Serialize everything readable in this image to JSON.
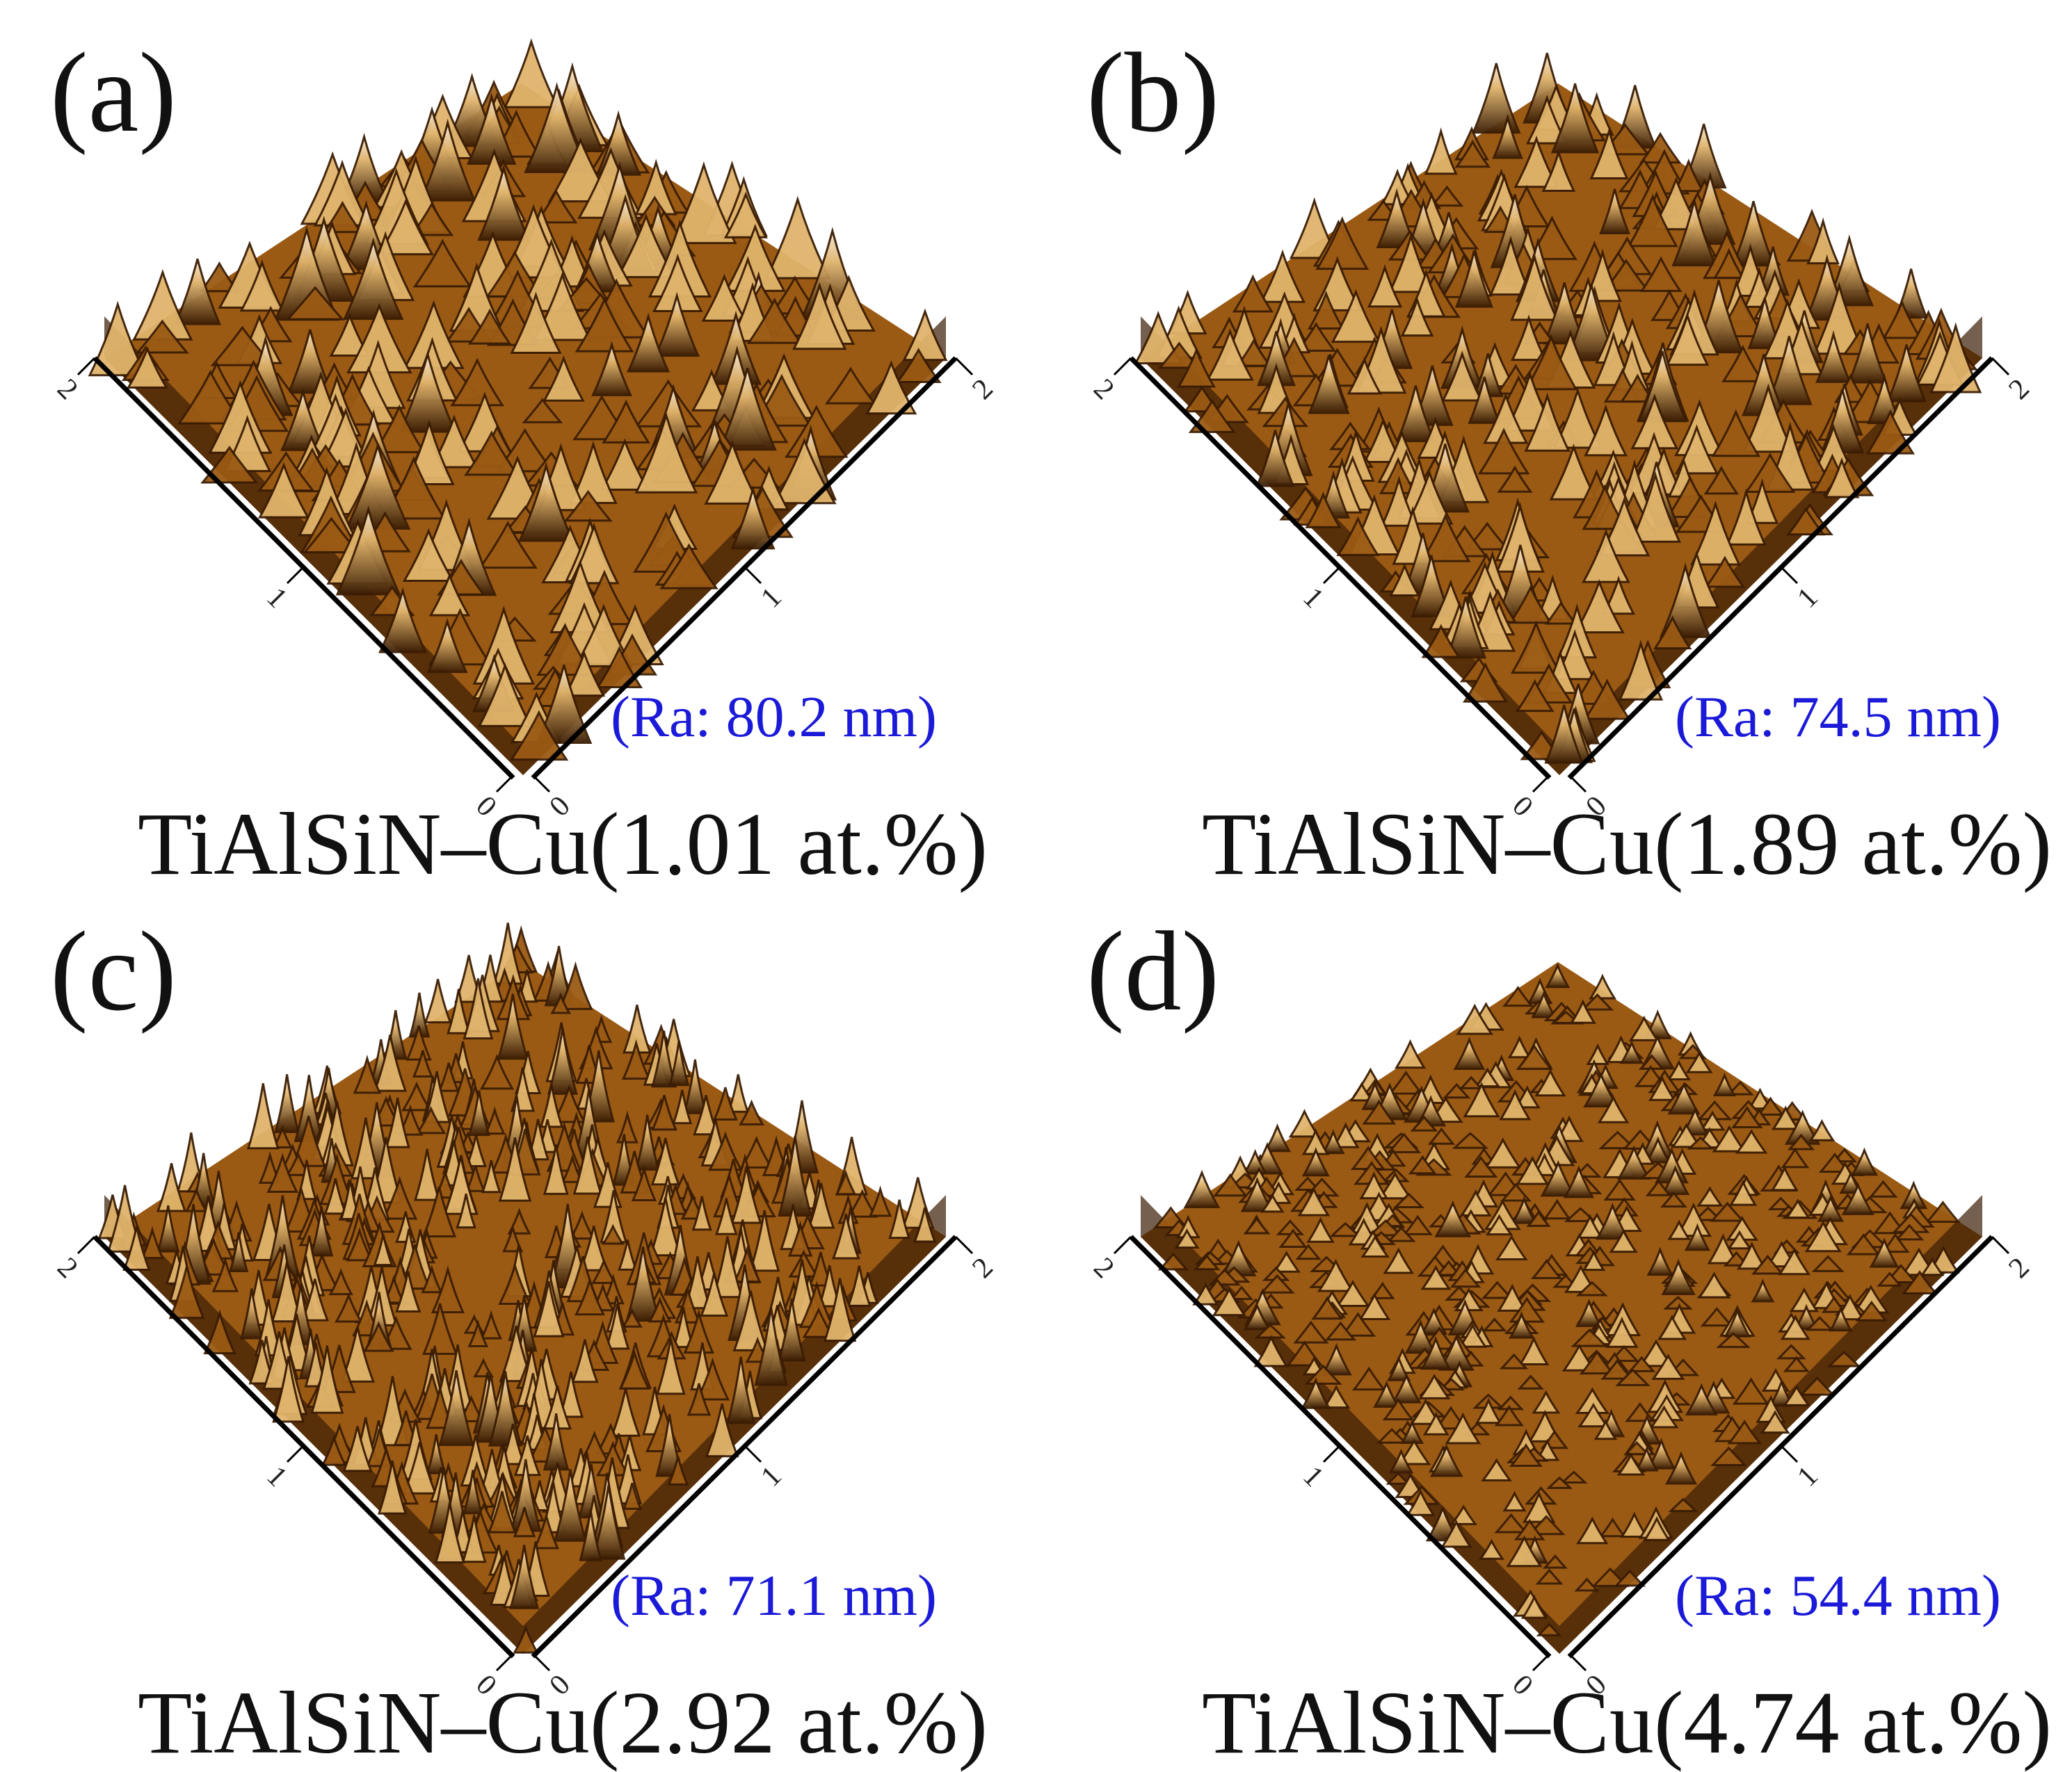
{
  "panels": [
    {
      "letter": "(a)",
      "ra": "(Ra: 80.2 nm)",
      "caption": "TiAlSiN–Cu(1.01 at.%)",
      "axis_ticks": [
        "0",
        "1",
        "2"
      ]
    },
    {
      "letter": "(b)",
      "ra": "(Ra: 74.5 nm)",
      "caption": "TiAlSiN–Cu(1.89 at.%)",
      "axis_ticks": [
        "0",
        "1",
        "2"
      ]
    },
    {
      "letter": "(c)",
      "ra": "(Ra: 71.1 nm)",
      "caption": "TiAlSiN–Cu(2.92 at.%)",
      "axis_ticks": [
        "0",
        "1",
        "2"
      ]
    },
    {
      "letter": "(d)",
      "ra": "(Ra: 54.4 nm)",
      "caption": "TiAlSiN–Cu(4.74 at.%)",
      "axis_ticks": [
        "0",
        "1",
        "2"
      ]
    }
  ],
  "colors": {
    "ra_text": "#1a1ad8",
    "surface_dark": "#3b1d04",
    "surface_mid": "#9a5a14",
    "surface_light": "#e0b46c",
    "surface_peak": "#f5eadb"
  }
}
